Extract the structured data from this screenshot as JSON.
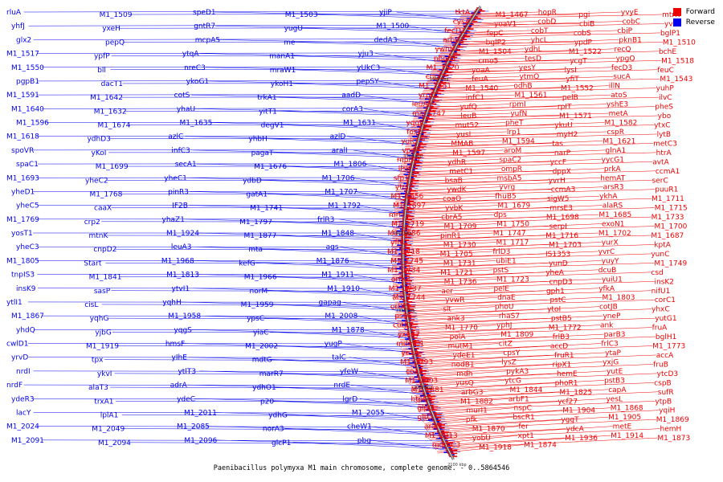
{
  "caption": "Paenibacillus polymyxa M1 main chromosome, complete genome. - 0..5864546",
  "legend": [
    {
      "label": "Forward",
      "color": "#ee0000"
    },
    {
      "label": "Reverse",
      "color": "#0000ee"
    }
  ],
  "colors": {
    "forward": "#ee0000",
    "reverse": "#0000ee",
    "backbone": "#555555"
  },
  "scale_labels": [
    "1600 kbp",
    "1700 kbp",
    "1800 kbp",
    "1900 kbp",
    "2000 kbp",
    "2100 kbp"
  ],
  "reverse_genes": [
    "rluA",
    "M1_1509",
    "speD1",
    "M1_1503",
    "yjiP",
    "yhfJ",
    "yxeH",
    "gntR7",
    "yugU",
    "M1_1500",
    "glx2",
    "pepQ",
    "mcpA5",
    "me",
    "dedA3",
    "M1_1517",
    "ypfP",
    "ytqA",
    "manA1",
    "yju3",
    "M1_1550",
    "bll",
    "nreC3",
    "mraW1",
    "yUkC3",
    "pgpB1",
    "dacT1",
    "ykoG1",
    "ykoH1",
    "pepSY",
    "M1_1591",
    "M1_1642",
    "cotS",
    "trkA1",
    "aadD",
    "M1_1640",
    "M1_1632",
    "yhaU",
    "yitT1",
    "corA3",
    "M1_1596",
    "M1_1674",
    "M1_1635",
    "degV1",
    "M1_1631",
    "M1_1618",
    "ydhD3",
    "azlC",
    "yhbH",
    "azlD",
    "spoVR",
    "yKoI",
    "infC3",
    "pagaT",
    "aralI",
    "spaC1",
    "M1_1699",
    "secA1",
    "M1_1676",
    "M1_1806",
    "M1_1693",
    "yheC2",
    "yheC1",
    "ydbD",
    "M1_1706",
    "yheD1",
    "M1_1768",
    "pinR3",
    "gatA1",
    "M1_1707",
    "yheC5",
    "caaX",
    "IF2B",
    "M1_1741",
    "M1_1792",
    "M1_1769",
    "crp2",
    "yhaZ1",
    "M1_1797",
    "frlR3",
    "yosT1",
    "mtnK",
    "M1_1924",
    "M1_1877",
    "M1_1848",
    "yheC3",
    "cnpD2",
    "leuA3",
    "mta",
    "ags",
    "M1_1805",
    "Start",
    "M1_1968",
    "kefG",
    "M1_1876",
    "tnpIS3",
    "M1_1841",
    "M1_1813",
    "M1_1966",
    "M1_1911",
    "insK9",
    "sasP",
    "ytvI1",
    "norM",
    "M1_1910",
    "ytlI1",
    "cisL",
    "yqhH",
    "M1_1959",
    "gapag",
    "M1_1867",
    "yqhG",
    "M1_1958",
    "ypsC",
    "M1_2008",
    "yhdQ",
    "yjbG",
    "yqgS",
    "yiaC",
    "M1_1878",
    "cwlD1",
    "M1_1919",
    "hmsF",
    "M1_2002",
    "yugP",
    "yrvD",
    "tpx",
    "yIhE",
    "mdtG",
    "talC",
    "nrdI",
    "ykvI",
    "ytlT3",
    "marR7",
    "yfeW",
    "nrdF",
    "alaT3",
    "adrA",
    "ydhO1",
    "nrdE",
    "ydeR3",
    "trxA1",
    "ydeC",
    "p20",
    "lgrD",
    "lacY",
    "lplA1",
    "M1_2011",
    "ydhG",
    "M1_2055",
    "M1_2024",
    "M1_2049",
    "M1_2085",
    "norA3",
    "cheW1",
    "M1_2091",
    "M1_2094",
    "M1_2096",
    "glcP1",
    "pbg"
  ],
  "forward_genes": [
    "tktA",
    "M1_1467",
    "hopR",
    "pgi",
    "yvyE",
    "mtrR",
    "cysA",
    "yoaV1",
    "cobD",
    "cbiB",
    "cobC",
    "yvrC",
    "fecD1",
    "fepC",
    "cobT",
    "cobS",
    "cbiP",
    "bglP1",
    "arbG1",
    "bglP2",
    "yhcL",
    "ypdP",
    "pknB1",
    "M1_1510",
    "ywnH",
    "M1_1504",
    "ydhL",
    "M1_1522",
    "recQ",
    "bchE",
    "phoB1",
    "cmo5",
    "tesD",
    "ycgT",
    "ypgQ",
    "M1_1518",
    "M1_1520",
    "yoaA",
    "yesY",
    "lysI",
    "fecD3",
    "feuC",
    "cnpD",
    "feuA",
    "ytmO",
    "yfiT",
    "sucA",
    "M1_1543",
    "M1_1551",
    "M1_1540",
    "odhB",
    "M1_1552",
    "illN",
    "yuhP",
    "yrpQ",
    "infC1",
    "M1_1561",
    "pelB",
    "atoS",
    "ilvC",
    "leuA1",
    "yufQ",
    "rpmI",
    "rpIT",
    "yshE3",
    "pheS",
    "ma_1747",
    "leuB",
    "yufN",
    "M1_1571",
    "metA",
    "ybo",
    "yqgE",
    "mut52",
    "pheT",
    "ykuU",
    "M1_1582",
    "ytxC",
    "fos2",
    "yusI",
    "lrp1",
    "myH2",
    "cspR",
    "lytB",
    "yuiC",
    "MMAB",
    "M1_1594",
    "tas",
    "M1_1621",
    "metC3",
    "vpcP",
    "M1_1597",
    "aroM",
    "narP",
    "glnA1",
    "htrA",
    "mprA1",
    "ydhR",
    "spaC2",
    "yccF",
    "yycG1",
    "avtA",
    "lisK",
    "metC1",
    "ompR",
    "dppX",
    "prkA",
    "ccmA1",
    "sfp1",
    "bsaB",
    "msbA5",
    "yvrH",
    "hemAT",
    "serC",
    "ytcJ2",
    "ywdK",
    "yvrg",
    "ccmA3",
    "arsR3",
    "puuR1",
    "M1_1656",
    "coaO",
    "fhuB5",
    "sigW5",
    "ykhA",
    "M1_1711",
    "M1_1697",
    "yvbK",
    "M1_1679",
    "mrsE3",
    "alaRS",
    "M1_1715",
    "mrr",
    "cbrA5",
    "dps",
    "M1_1698",
    "M1_1685",
    "M1_1733",
    "M1_1719",
    "M1_1709",
    "M1_1750",
    "serpI",
    "exoN1",
    "M1_1700",
    "M1_1686",
    "pinR1",
    "M1_1747",
    "M1_1716",
    "M1_1702",
    "M1_1687",
    "yfhU",
    "M1_1730",
    "M1_1717",
    "M1_1703",
    "yurX",
    "kptA",
    "M1_1718",
    "M1_1705",
    "frlD3",
    "IS1353",
    "yvrC",
    "yunC",
    "M1_1745",
    "M1_1731",
    "ubiE1",
    "yunD",
    "yuyY",
    "M1_1749",
    "M1_1734",
    "M1_1721",
    "pstS",
    "yheA",
    "dcuB",
    "csd",
    "orfX3",
    "M1_1736",
    "M1_1723",
    "cnpD3",
    "yuiU1",
    "insK2",
    "M1_1737",
    "aer",
    "pelE",
    "gph1",
    "yfkA",
    "nifU1",
    "M1_1744",
    "yvwR",
    "dnaE",
    "pstC",
    "M1_1803",
    "corC1",
    "orfX5",
    "slt",
    "phoU",
    "ytoI",
    "cotJB",
    "yhxC",
    "pstA",
    "ank3",
    "rhaS7",
    "pstB5",
    "yneP",
    "yutG1",
    "cotJC",
    "M1_1770",
    "yphJ",
    "M1_1772",
    "ank",
    "fruA",
    "yxeB7",
    "polA",
    "M1_1809",
    "frlB3",
    "parB3",
    "bglH1",
    "mdmC1",
    "mutM1",
    "citZ",
    "accD",
    "frlC3",
    "M1_1773",
    "yezA",
    "ydeE1",
    "cpsY",
    "fruR1",
    "ytaP",
    "accA",
    "M1_1793",
    "nodB1",
    "lysZ",
    "ripX1",
    "yxjG",
    "fruB",
    "coaE",
    "mdh",
    "pykA3",
    "hemE",
    "yutE",
    "ytcD3",
    "M1_1903",
    "yusQ",
    "ytcG",
    "phoR1",
    "pstB3",
    "cspB",
    "M1_1881",
    "arbG3",
    "M1_1844",
    "M1_1825",
    "capA",
    "sufR",
    "htpG3",
    "M1_1882",
    "arbF1",
    "ycf27",
    "yesL",
    "ytpB",
    "glpQ",
    "murI1",
    "nspC",
    "M1_1904",
    "M1_1868",
    "yqiH",
    "gltC",
    "pfk",
    "bscR1",
    "yggT",
    "M1_1905",
    "M1_1869",
    "araM",
    "M1_1870",
    "fer",
    "ydcA",
    "metE",
    "hemH",
    "M1_1913",
    "yobU",
    "xpt1",
    "M1_1936",
    "M1_1914",
    "M1_1873",
    "mdmC3",
    "M1_1918",
    "M1_1874"
  ]
}
